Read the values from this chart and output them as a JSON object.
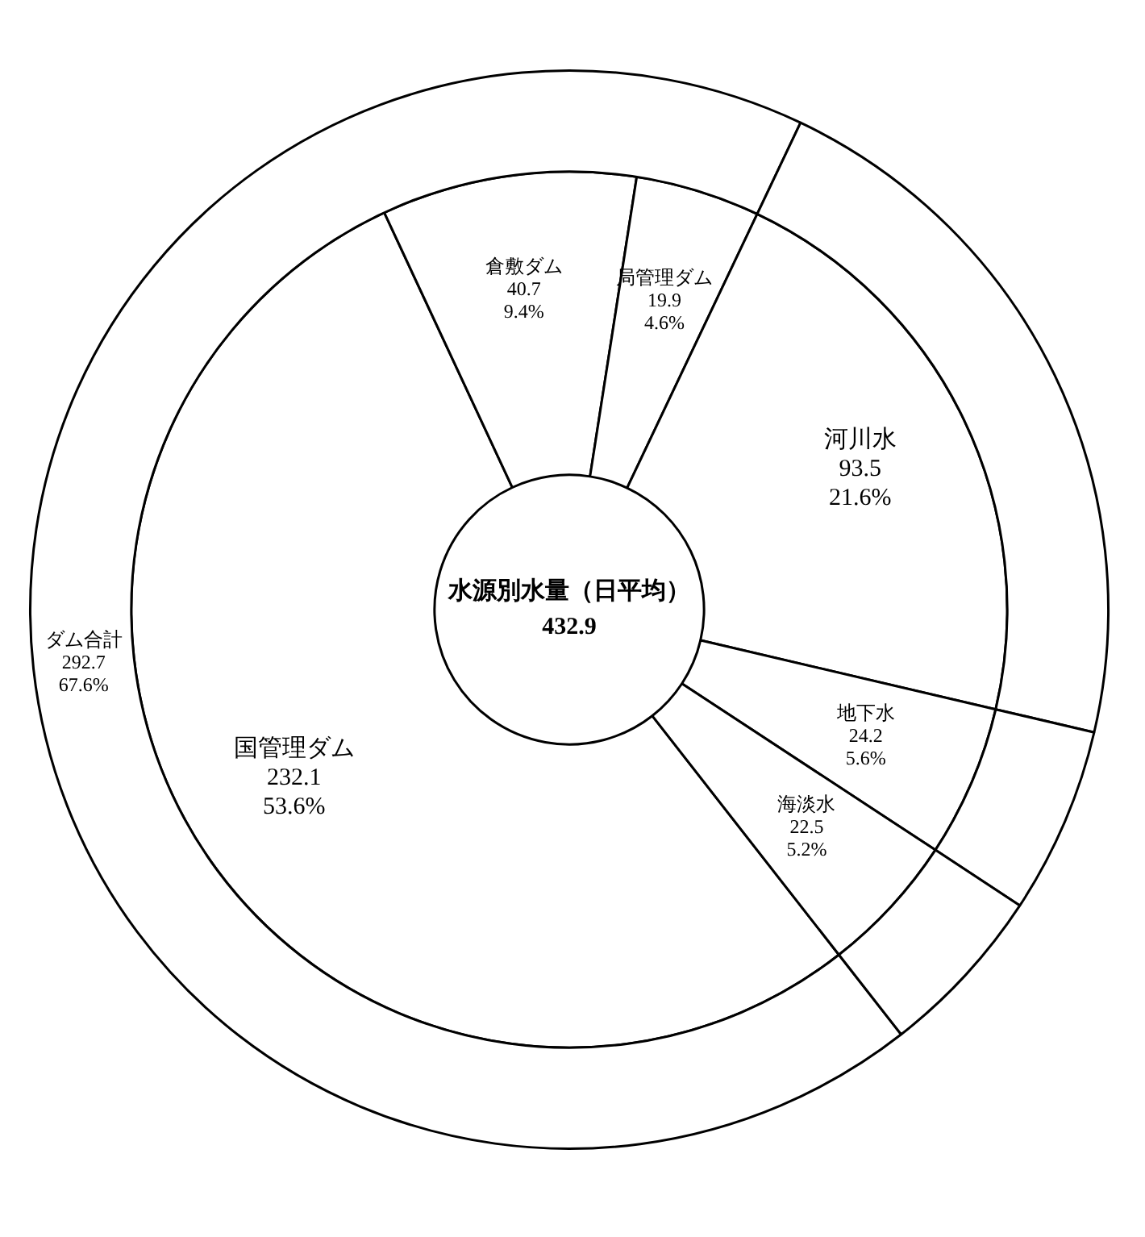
{
  "chart_data": {
    "type": "donut",
    "title": "水源別水量（日平均）",
    "annotations": [
      "432.9"
    ],
    "categories": [
      "国管理ダム",
      "倉敷ダム",
      "局管理ダム",
      "河川水",
      "地下水",
      "海淡水"
    ],
    "colors": [
      "#ffffff",
      "#ffffff",
      "#ffffff",
      "#ffffff",
      "#ffffff",
      "#ffffff"
    ],
    "legend": false,
    "series": [
      {
        "values": [
          232.1,
          40.7,
          19.9,
          93.5,
          24.2,
          22.5
        ],
        "value_labels": [
          "232.1 53.6%",
          "40.7 9.4%",
          "19.9 4.6%",
          "93.5 21.6%",
          "24.2 5.6%",
          "22.5 5.2%"
        ]
      },
      {
        "values": [
          292.7,
          null,
          null,
          93.5,
          24.2,
          22.5
        ],
        "value_labels": [
          "ダム合計 292.7 67.6%",
          null,
          null,
          null,
          null,
          null
        ]
      }
    ]
  }
}
